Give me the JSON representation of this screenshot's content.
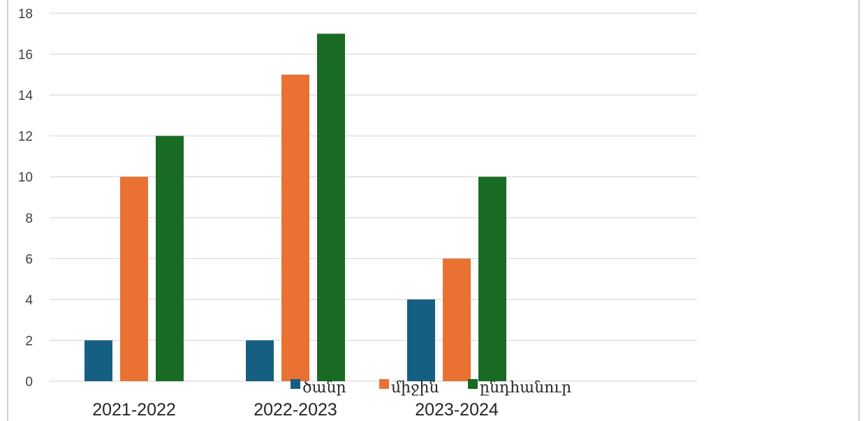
{
  "chart_data": {
    "type": "bar",
    "title": "",
    "xlabel": "",
    "ylabel": "",
    "categories": [
      "2021-2022",
      "2022-2023",
      "2023-2024"
    ],
    "series": [
      {
        "name": "ծանր",
        "values": [
          2,
          2,
          4
        ],
        "color": "#156082"
      },
      {
        "name": "միջին",
        "values": [
          10,
          15,
          6
        ],
        "color": "#e97132"
      },
      {
        "name": "ընդհանուր",
        "values": [
          12,
          17,
          10
        ],
        "color": "#196b24"
      }
    ],
    "ylim": [
      0,
      18
    ],
    "yticks": [
      0,
      2,
      4,
      6,
      8,
      10,
      12,
      14,
      16,
      18
    ],
    "grid": true,
    "legend_position": "bottom"
  }
}
